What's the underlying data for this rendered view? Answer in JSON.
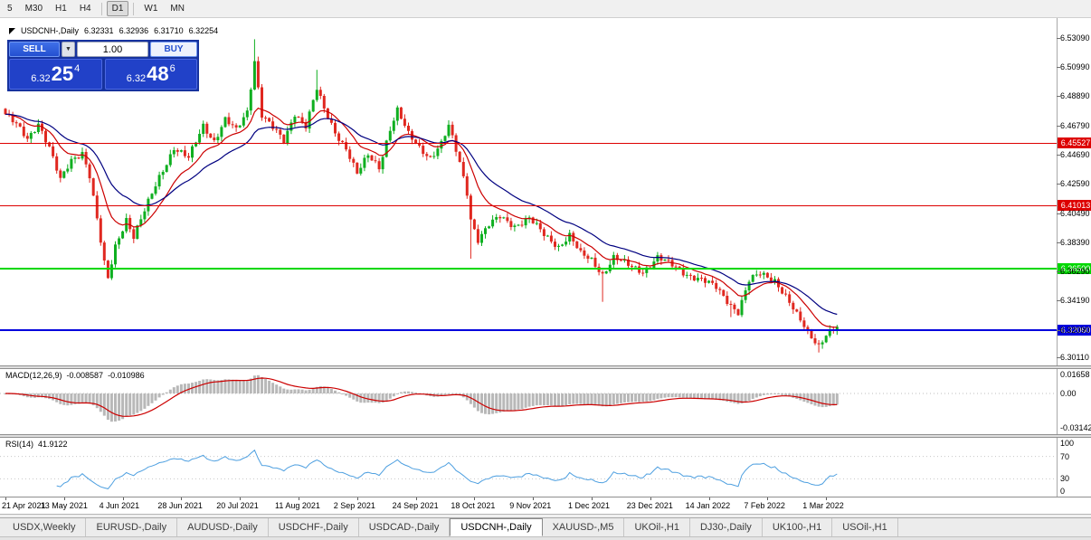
{
  "toolbar": {
    "items": [
      {
        "label": "5"
      },
      {
        "label": "M30"
      },
      {
        "label": "H1"
      },
      {
        "label": "H4"
      },
      {
        "sep": true
      },
      {
        "label": "D1",
        "active": true
      },
      {
        "sep": true
      },
      {
        "label": "W1"
      },
      {
        "label": "MN"
      }
    ]
  },
  "chart": {
    "symbol": "USDCNH-,Daily",
    "open": "6.32331",
    "high": "6.32936",
    "low": "6.31710",
    "close": "6.32254",
    "trade_panel": {
      "sell_label": "SELL",
      "buy_label": "BUY",
      "volume": "1.00",
      "sell_price": {
        "prefix": "6.32",
        "big": "25",
        "sup": "4"
      },
      "buy_price": {
        "prefix": "6.32",
        "big": "48",
        "sup": "6"
      }
    },
    "price_axis": {
      "labels": [
        "6.53090",
        "6.50990",
        "6.48890",
        "6.46790",
        "6.44690",
        "6.42590",
        "6.40490",
        "6.38390",
        "6.36290",
        "6.34190",
        "6.32090",
        "6.30110"
      ]
    },
    "hlines": [
      {
        "price": 6.45527,
        "label": "6.45527",
        "color": "#dd0000",
        "width": 1
      },
      {
        "price": 6.41013,
        "label": "6.41013",
        "color": "#dd0000",
        "width": 1
      },
      {
        "price": 6.365,
        "label": "6.36500",
        "color": "#00d800",
        "width": 2
      },
      {
        "price": 6.3206,
        "label": "6.32060",
        "color": "#0000dd",
        "width": 2
      }
    ]
  },
  "macd": {
    "title": "MACD(12,26,9)",
    "value1": "-0.008587",
    "value2": "-0.010986",
    "axis_labels": [
      "0.01658",
      "0.00",
      "-0.03142"
    ]
  },
  "rsi": {
    "title": "RSI(14)",
    "value": "41.9122",
    "axis_labels": [
      "100",
      "70",
      "30",
      "0"
    ]
  },
  "time_axis": {
    "dates": [
      "21 Apr 2021",
      "13 May 2021",
      "4 Jun 2021",
      "28 Jun 2021",
      "20 Jul 2021",
      "11 Aug 2021",
      "2 Sep 2021",
      "24 Sep 2021",
      "18 Oct 2021",
      "9 Nov 2021",
      "1 Dec 2021",
      "23 Dec 2021",
      "14 Jan 2022",
      "7 Feb 2022",
      "1 Mar 2022"
    ]
  },
  "tabs": [
    {
      "label": "USDX,Weekly"
    },
    {
      "label": "EURUSD-,Daily"
    },
    {
      "label": "AUDUSD-,Daily"
    },
    {
      "label": "USDCHF-,Daily"
    },
    {
      "label": "USDCAD-,Daily"
    },
    {
      "label": "USDCNH-,Daily",
      "active": true
    },
    {
      "label": "XAUUSD-,M5"
    },
    {
      "label": "UKOil-,H1"
    },
    {
      "label": "DJ30-,Daily"
    },
    {
      "label": "UK100-,H1"
    },
    {
      "label": "USOil-,H1"
    }
  ],
  "chart_data": {
    "type": "candlestick",
    "symbol": "USDCNH",
    "timeframe": "Daily",
    "x_range": [
      "21 Apr 2021",
      "8 Mar 2022"
    ],
    "y_range": [
      6.296,
      6.54
    ],
    "candle_count": 228,
    "last_ohlc": {
      "open": 6.32331,
      "high": 6.32936,
      "low": 6.3171,
      "close": 6.32254
    },
    "colors": {
      "up": "#0faf20",
      "down": "#e02820",
      "ma_fast": "#cc0000",
      "ma_slow": "#000080",
      "macd_hist": "#b8b8b8",
      "macd_signal": "#cc0000",
      "rsi_line": "#4d9fe0"
    },
    "price_keypoints": [
      [
        0,
        6.476
      ],
      [
        3,
        6.468
      ],
      [
        6,
        6.458
      ],
      [
        9,
        6.47
      ],
      [
        12,
        6.452
      ],
      [
        15,
        6.428
      ],
      [
        18,
        6.443
      ],
      [
        21,
        6.449
      ],
      [
        23,
        6.432
      ],
      [
        25,
        6.4
      ],
      [
        27,
        6.368
      ],
      [
        28,
        6.357
      ],
      [
        30,
        6.381
      ],
      [
        33,
        6.401
      ],
      [
        35,
        6.388
      ],
      [
        38,
        6.406
      ],
      [
        42,
        6.431
      ],
      [
        46,
        6.452
      ],
      [
        50,
        6.444
      ],
      [
        54,
        6.468
      ],
      [
        57,
        6.457
      ],
      [
        60,
        6.472
      ],
      [
        63,
        6.464
      ],
      [
        66,
        6.478
      ],
      [
        68,
        6.515
      ],
      [
        70,
        6.476
      ],
      [
        73,
        6.466
      ],
      [
        76,
        6.456
      ],
      [
        79,
        6.477
      ],
      [
        82,
        6.468
      ],
      [
        85,
        6.494
      ],
      [
        87,
        6.479
      ],
      [
        90,
        6.463
      ],
      [
        93,
        6.452
      ],
      [
        96,
        6.433
      ],
      [
        99,
        6.446
      ],
      [
        102,
        6.438
      ],
      [
        105,
        6.466
      ],
      [
        107,
        6.479
      ],
      [
        110,
        6.461
      ],
      [
        113,
        6.452
      ],
      [
        116,
        6.445
      ],
      [
        119,
        6.455
      ],
      [
        121,
        6.467
      ],
      [
        124,
        6.441
      ],
      [
        126,
        6.42
      ],
      [
        127,
        6.401
      ],
      [
        129,
        6.386
      ],
      [
        132,
        6.396
      ],
      [
        135,
        6.402
      ],
      [
        139,
        6.396
      ],
      [
        143,
        6.401
      ],
      [
        147,
        6.389
      ],
      [
        151,
        6.381
      ],
      [
        154,
        6.389
      ],
      [
        157,
        6.375
      ],
      [
        160,
        6.371
      ],
      [
        163,
        6.361
      ],
      [
        166,
        6.373
      ],
      [
        170,
        6.367
      ],
      [
        174,
        6.363
      ],
      [
        178,
        6.373
      ],
      [
        182,
        6.367
      ],
      [
        186,
        6.361
      ],
      [
        190,
        6.357
      ],
      [
        194,
        6.351
      ],
      [
        198,
        6.339
      ],
      [
        200,
        6.334
      ],
      [
        203,
        6.356
      ],
      [
        206,
        6.361
      ],
      [
        210,
        6.357
      ],
      [
        213,
        6.345
      ],
      [
        216,
        6.331
      ],
      [
        219,
        6.319
      ],
      [
        222,
        6.31
      ],
      [
        224,
        6.318
      ],
      [
        226,
        6.321
      ],
      [
        227,
        6.3225
      ]
    ],
    "wick_overrides": {
      "68": {
        "high": 6.53
      },
      "85": {
        "high": 6.508
      },
      "127": {
        "low": 6.372
      },
      "163": {
        "low": 6.341
      },
      "198": {
        "low": 6.33
      },
      "222": {
        "low": 6.3045
      }
    },
    "moving_averages": [
      {
        "period": 12,
        "color": "#cc0000"
      },
      {
        "period": 26,
        "color": "#000080"
      }
    ],
    "indicators": [
      {
        "name": "MACD",
        "params": [
          12,
          26,
          9
        ],
        "last_values": [
          -0.008587,
          -0.010986
        ],
        "axis": [
          0.01658,
          0.0,
          -0.03142
        ]
      },
      {
        "name": "RSI",
        "params": [
          14
        ],
        "last_value": 41.9122,
        "levels": [
          70,
          30
        ]
      }
    ],
    "horizontal_levels": [
      6.45527,
      6.41013,
      6.365,
      6.3206
    ]
  }
}
